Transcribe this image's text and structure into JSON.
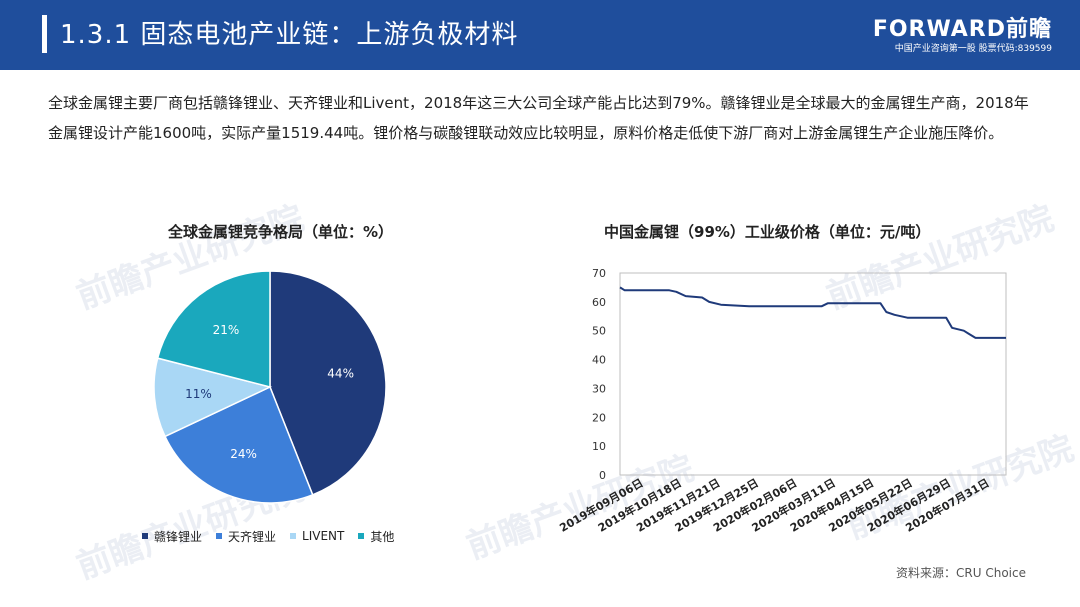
{
  "header": {
    "title": "1.3.1 固态电池产业链：上游负极材料",
    "logo": "FORWARD前瞻",
    "logo_sub": "中国产业咨询第一股 股票代码:839599"
  },
  "intro": "全球金属锂主要厂商包括赣锋锂业、天齐锂业和Livent，2018年这三大公司全球产能占比达到79%。赣锋锂业是全球最大的金属锂生产商，2018年金属锂设计产能1600吨，实际产量1519.44吨。锂价格与碳酸锂联动效应比较明显，原料价格走低使下游厂商对上游金属锂生产企业施压降价。",
  "watermark": "前瞻产业研究院",
  "source": "资料来源：CRU Choice",
  "chart_data": [
    {
      "type": "pie",
      "title": "全球金属锂竞争格局（单位：%）",
      "categories": [
        "赣锋锂业",
        "天齐锂业",
        "LIVENT",
        "其他"
      ],
      "values": [
        44,
        24,
        11,
        21
      ],
      "labels": [
        "44%",
        "24%",
        "11%",
        "21%"
      ],
      "colors": [
        "#1f3a7a",
        "#3d7fd9",
        "#a9d7f5",
        "#1aa8bd"
      ],
      "legend": "bottom"
    },
    {
      "type": "line",
      "title": "中国金属锂（99%）工业级价格（单位：元/吨）",
      "x_ticks": [
        "2019年09月06日",
        "2019年10月18日",
        "2019年11月21日",
        "2019年12月25日",
        "2020年02月06日",
        "2020年03月11日",
        "2020年04月15日",
        "2020年05月22日",
        "2020年06月29日",
        "2020年07月31日"
      ],
      "ylim": [
        0,
        70
      ],
      "y_ticks": [
        0,
        10,
        20,
        30,
        40,
        50,
        60,
        70
      ],
      "grid": false,
      "color": "#1f3a7a",
      "series": [
        {
          "x": [
            "2019-09-06",
            "2019-09-10",
            "2019-10-18",
            "2019-10-24",
            "2019-11-01",
            "2019-11-15",
            "2019-11-21",
            "2019-12-01",
            "2019-12-25",
            "2020-01-15",
            "2020-02-06",
            "2020-02-25",
            "2020-03-01",
            "2020-03-11",
            "2020-04-15",
            "2020-04-20",
            "2020-04-27",
            "2020-05-08",
            "2020-05-22",
            "2020-06-10",
            "2020-06-15",
            "2020-06-25",
            "2020-06-29",
            "2020-07-05",
            "2020-07-31"
          ],
          "values": [
            65,
            64,
            64,
            63.5,
            62,
            61.5,
            60,
            59,
            58.5,
            58.5,
            58.5,
            58.5,
            59.5,
            59.5,
            59.5,
            56.5,
            55.5,
            54.5,
            54.5,
            54.5,
            51,
            50,
            49,
            47.5,
            47.5
          ]
        }
      ]
    }
  ]
}
